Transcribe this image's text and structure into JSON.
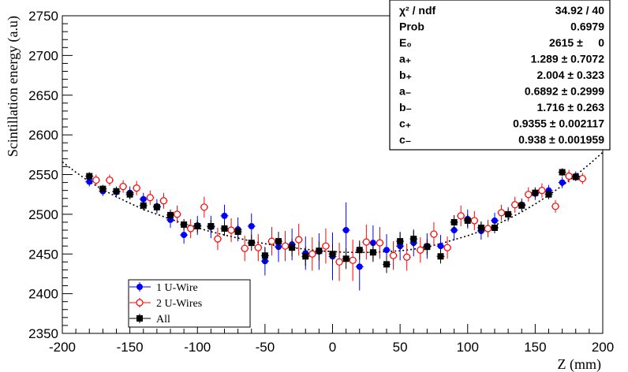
{
  "chart_data": {
    "type": "scatter",
    "title": "",
    "xlabel": "Z (mm)",
    "ylabel": "Scintillation energy (a.u)",
    "xlim": [
      -200,
      200
    ],
    "ylim": [
      2350,
      2750
    ],
    "xticks": [
      "-200",
      "-150",
      "-100",
      "-50",
      "0",
      "50",
      "100",
      "150",
      "200"
    ],
    "yticks": [
      "2350",
      "2400",
      "2450",
      "2500",
      "2550",
      "2600",
      "2650",
      "2700",
      "2750"
    ],
    "legend_position": "bottom-left",
    "series": [
      {
        "name": "1 U-Wire",
        "color": "#0000ff",
        "marker": "filled-circle",
        "x": [
          -180,
          -170,
          -160,
          -150,
          -140,
          -130,
          -120,
          -110,
          -100,
          -90,
          -80,
          -70,
          -60,
          -50,
          -40,
          -30,
          -20,
          -10,
          0,
          10,
          20,
          30,
          40,
          50,
          60,
          70,
          80,
          90,
          100,
          110,
          120,
          130,
          140,
          150,
          160,
          170,
          180
        ],
        "y": [
          2541,
          2529,
          2528,
          2527,
          2519,
          2510,
          2493,
          2474,
          2486,
          2484,
          2498,
          2481,
          2485,
          2441,
          2459,
          2462,
          2451,
          2453,
          2447,
          2480,
          2434,
          2464,
          2455,
          2460,
          2464,
          2460,
          2460,
          2480,
          2494,
          2479,
          2492,
          2500,
          2512,
          2526,
          2530,
          2540,
          2548
        ],
        "err": [
          6,
          6,
          7,
          8,
          8,
          9,
          10,
          11,
          12,
          14,
          14,
          15,
          16,
          18,
          19,
          20,
          21,
          23,
          30,
          35,
          30,
          22,
          20,
          18,
          17,
          16,
          14,
          13,
          12,
          11,
          10,
          9,
          8,
          8,
          7,
          7,
          6
        ]
      },
      {
        "name": "2 U-Wires",
        "color": "#ff0000",
        "marker": "open-circle",
        "x": [
          -175,
          -165,
          -155,
          -145,
          -135,
          -125,
          -115,
          -105,
          -95,
          -85,
          -75,
          -65,
          -55,
          -45,
          -35,
          -25,
          -15,
          -5,
          5,
          15,
          25,
          35,
          45,
          55,
          65,
          75,
          85,
          95,
          105,
          115,
          125,
          135,
          145,
          155,
          165,
          175,
          185
        ],
        "y": [
          2543,
          2543,
          2535,
          2533,
          2521,
          2517,
          2500,
          2482,
          2509,
          2469,
          2480,
          2457,
          2458,
          2466,
          2460,
          2468,
          2450,
          2460,
          2440,
          2442,
          2465,
          2464,
          2448,
          2446,
          2455,
          2475,
          2458,
          2498,
          2492,
          2482,
          2502,
          2512,
          2525,
          2530,
          2510,
          2548,
          2545
        ],
        "err": [
          7,
          7,
          8,
          9,
          9,
          10,
          11,
          12,
          13,
          14,
          15,
          16,
          17,
          18,
          19,
          20,
          21,
          22,
          24,
          26,
          22,
          20,
          18,
          17,
          16,
          15,
          14,
          13,
          12,
          11,
          10,
          10,
          9,
          9,
          8,
          8,
          7
        ]
      },
      {
        "name": "All",
        "color": "#000000",
        "marker": "filled-square",
        "x": [
          -180,
          -170,
          -160,
          -150,
          -140,
          -130,
          -120,
          -110,
          -100,
          -90,
          -80,
          -70,
          -60,
          -50,
          -40,
          -30,
          -20,
          -10,
          0,
          10,
          20,
          30,
          40,
          50,
          60,
          70,
          80,
          90,
          100,
          110,
          120,
          130,
          140,
          150,
          160,
          170,
          180
        ],
        "y": [
          2548,
          2532,
          2529,
          2525,
          2511,
          2509,
          2499,
          2487,
          2485,
          2485,
          2482,
          2478,
          2464,
          2448,
          2466,
          2458,
          2447,
          2454,
          2450,
          2444,
          2455,
          2452,
          2437,
          2466,
          2469,
          2459,
          2447,
          2490,
          2492,
          2483,
          2483,
          2500,
          2511,
          2527,
          2525,
          2553,
          2547
        ],
        "err": [
          5,
          5,
          5,
          6,
          6,
          6,
          7,
          7,
          8,
          8,
          9,
          9,
          10,
          10,
          11,
          11,
          12,
          12,
          13,
          13,
          12,
          12,
          11,
          11,
          10,
          10,
          9,
          9,
          8,
          8,
          7,
          7,
          6,
          6,
          6,
          5,
          5
        ]
      }
    ],
    "fit_curve": {
      "name": "fit",
      "style": "dotted",
      "x": [
        -200,
        -190,
        -180,
        -170,
        -160,
        -150,
        -140,
        -130,
        -120,
        -110,
        -100,
        -90,
        -80,
        -70,
        -60,
        -50,
        -40,
        -30,
        -20,
        -10,
        0,
        10,
        20,
        30,
        40,
        50,
        60,
        70,
        80,
        90,
        100,
        110,
        120,
        130,
        140,
        150,
        160,
        170,
        180,
        190,
        200
      ],
      "y": [
        2566,
        2553,
        2541,
        2531,
        2522,
        2514,
        2506,
        2500,
        2494,
        2488,
        2483,
        2478,
        2474,
        2470,
        2466,
        2463,
        2460,
        2458,
        2456,
        2454,
        2453,
        2452,
        2452,
        2452,
        2453,
        2454,
        2456,
        2459,
        2463,
        2468,
        2473,
        2479,
        2486,
        2494,
        2503,
        2513,
        2524,
        2536,
        2549,
        2563,
        2578
      ]
    },
    "stats_box": [
      {
        "label": "χ² / ndf",
        "value": "34.92 / 40"
      },
      {
        "label": "Prob",
        "value": "0.6979"
      },
      {
        "label": "E₀",
        "value": "2615 ±     0"
      },
      {
        "label": "a₊",
        "value": "1.289 ± 0.7072"
      },
      {
        "label": "b₊",
        "value": "2.004 ± 0.323"
      },
      {
        "label": "a₋",
        "value": "0.6892 ± 0.2999"
      },
      {
        "label": "b₋",
        "value": "1.716 ± 0.263"
      },
      {
        "label": "c₊",
        "value": "0.9355 ± 0.002117"
      },
      {
        "label": "c₋",
        "value": "0.938 ± 0.001959"
      }
    ]
  }
}
